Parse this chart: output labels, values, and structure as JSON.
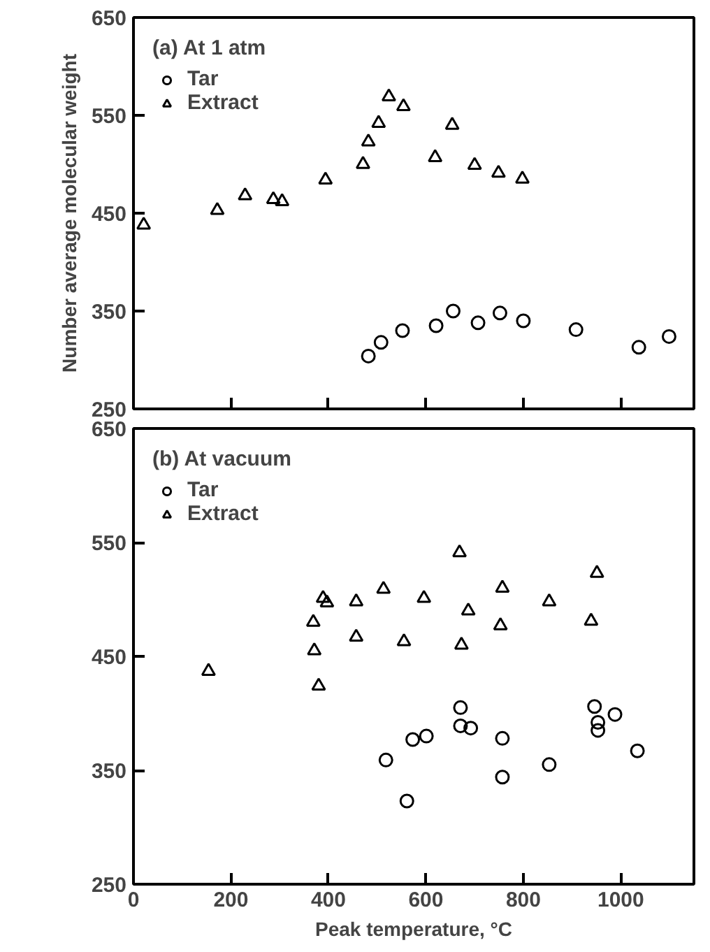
{
  "chart_data": [
    {
      "type": "scatter",
      "legend_title": "(a) At 1 atm",
      "ylabel": "Number average molecular weight",
      "xlim": [
        0,
        1150
      ],
      "ylim": [
        250,
        650
      ],
      "xticks": [
        0,
        200,
        400,
        600,
        800,
        1000
      ],
      "yticks": [
        250,
        350,
        450,
        550,
        650
      ],
      "tick_labels": "y",
      "grid": false,
      "legend": "top left",
      "series": [
        {
          "name": "Tar",
          "color": "#000000",
          "marker": "circle",
          "x": [
            482,
            508,
            552,
            621,
            656,
            707,
            752,
            800,
            908,
            1037,
            1099
          ],
          "values": [
            304,
            318,
            330,
            335,
            350,
            338,
            348,
            340,
            331,
            313,
            324
          ]
        },
        {
          "name": "Extract",
          "color": "#000000",
          "marker": "triangle",
          "x": [
            21,
            172,
            229,
            287,
            305,
            394,
            471,
            482,
            503,
            524,
            554,
            619,
            654,
            700,
            749,
            798
          ],
          "values": [
            438,
            453,
            468,
            464,
            462,
            484,
            500,
            523,
            542,
            569,
            559,
            507,
            540,
            499,
            491,
            485
          ]
        }
      ]
    },
    {
      "type": "scatter",
      "legend_title": "(b) At vacuum",
      "xlabel": "Peak temperature, °C",
      "xlim": [
        0,
        1150
      ],
      "ylim": [
        250,
        650
      ],
      "xticks": [
        0,
        200,
        400,
        600,
        800,
        1000
      ],
      "yticks": [
        250,
        350,
        450,
        550,
        650
      ],
      "grid": false,
      "legend": "top left",
      "series": [
        {
          "name": "Tar",
          "color": "#000000",
          "marker": "circle",
          "x": [
            518,
            561,
            573,
            601,
            671,
            671,
            692,
            757,
            757,
            853,
            946,
            953,
            953,
            988,
            1034
          ],
          "values": [
            359,
            323,
            377,
            380,
            405,
            389,
            387,
            378,
            344,
            355,
            406,
            385,
            392,
            399,
            367
          ]
        },
        {
          "name": "Extract",
          "color": "#000000",
          "marker": "triangle",
          "x": [
            154,
            369,
            371,
            380,
            389,
            397,
            457,
            457,
            513,
            555,
            596,
            669,
            673,
            687,
            753,
            757,
            853,
            939,
            951
          ],
          "values": [
            437,
            480,
            455,
            424,
            501,
            497,
            498,
            467,
            509,
            463,
            501,
            541,
            460,
            490,
            477,
            510,
            498,
            481,
            523
          ]
        }
      ]
    }
  ]
}
